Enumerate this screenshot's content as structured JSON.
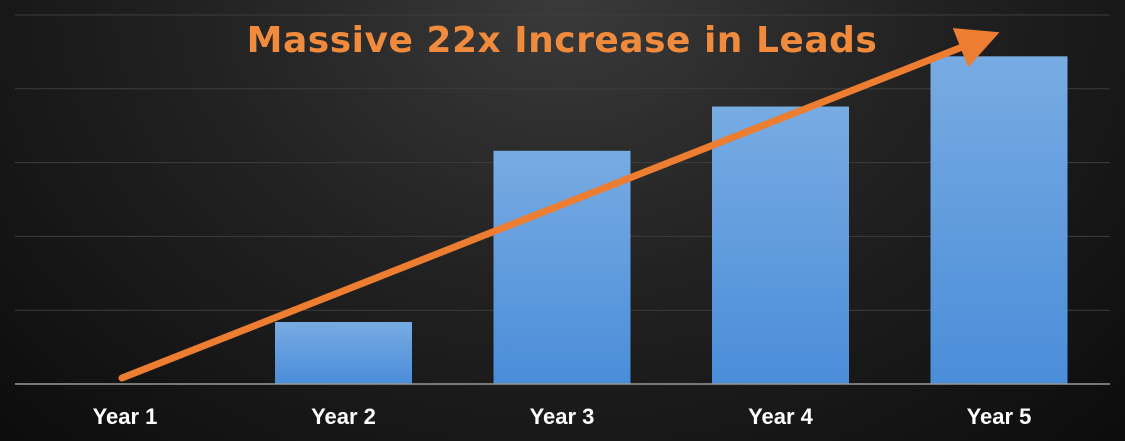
{
  "chart_data": {
    "type": "bar",
    "title": "Massive 22x Increase in Leads",
    "xlabel": "",
    "ylabel": "",
    "categories": [
      "Year 1",
      "Year 2",
      "Year 3",
      "Year 4",
      "Year 5"
    ],
    "values": [
      0,
      0.21,
      0.79,
      0.94,
      1.11
    ],
    "ylim": [
      0,
      1.25
    ],
    "y_axis_labels_shown": false,
    "grid": true,
    "legend": "none",
    "trend_arrow": true
  },
  "colors": {
    "bar_top": "#78ABE2",
    "bar_bottom": "#4A8DD9",
    "title": "#F08A3C",
    "arrow": "#ED7D31",
    "gridline": "#3d3d3d",
    "axis_line": "#9a9a9a",
    "tick_label": "#FFFFFF"
  }
}
